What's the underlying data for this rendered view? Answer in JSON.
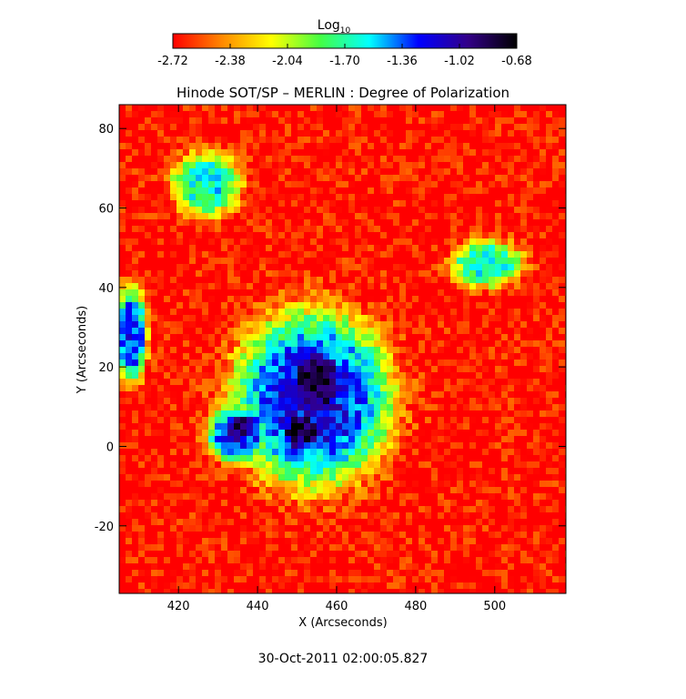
{
  "chart_data": {
    "type": "heatmap",
    "title": "Hinode SOT/SP – MERLIN : Degree of Polarization",
    "xlabel": "X (Arcseconds)",
    "ylabel": "Y (Arcseconds)",
    "timestamp": "30-Oct-2011 02:00:05.827",
    "xlim": [
      405,
      518
    ],
    "ylim": [
      -37,
      86
    ],
    "xticks": [
      420,
      440,
      460,
      480,
      500
    ],
    "yticks": [
      -20,
      0,
      20,
      40,
      60,
      80
    ],
    "colorbar": {
      "label_base": "Log",
      "label_sub": "10",
      "scale": "log10",
      "range": [
        -2.72,
        -0.68
      ],
      "ticks": [
        "-2.72",
        "-2.38",
        "-2.04",
        "-1.70",
        "-1.36",
        "-1.02",
        "-0.68"
      ],
      "colormap": [
        "#ff0000",
        "#ff8800",
        "#ffff00",
        "#44ff44",
        "#00ffff",
        "#0000ff",
        "#330088",
        "#000000"
      ]
    },
    "features": [
      {
        "name": "umbra",
        "x": 455,
        "y": 16,
        "rx": 8,
        "ry": 10,
        "value": -0.8
      },
      {
        "name": "umbra-core-2",
        "x": 451,
        "y": 4,
        "rx": 6,
        "ry": 6,
        "value": -0.8
      },
      {
        "name": "umbra-west-lobe",
        "x": 436,
        "y": 5,
        "rx": 6,
        "ry": 4,
        "value": -0.95
      },
      {
        "name": "penumbra",
        "x": 454,
        "y": 12,
        "rx": 20,
        "ry": 22,
        "value": -1.2
      },
      {
        "name": "penumbra-west",
        "x": 435,
        "y": 3,
        "rx": 8,
        "ry": 7,
        "value": -1.2
      },
      {
        "name": "east-patch",
        "x": 408,
        "y": 28,
        "rx": 4,
        "ry": 12,
        "value": -1.25
      },
      {
        "name": "northeast-patch",
        "x": 498,
        "y": 46,
        "rx": 9,
        "ry": 6,
        "value": -1.6
      },
      {
        "name": "north-patch",
        "x": 427,
        "y": 66,
        "rx": 9,
        "ry": 8,
        "value": -1.6
      }
    ]
  }
}
